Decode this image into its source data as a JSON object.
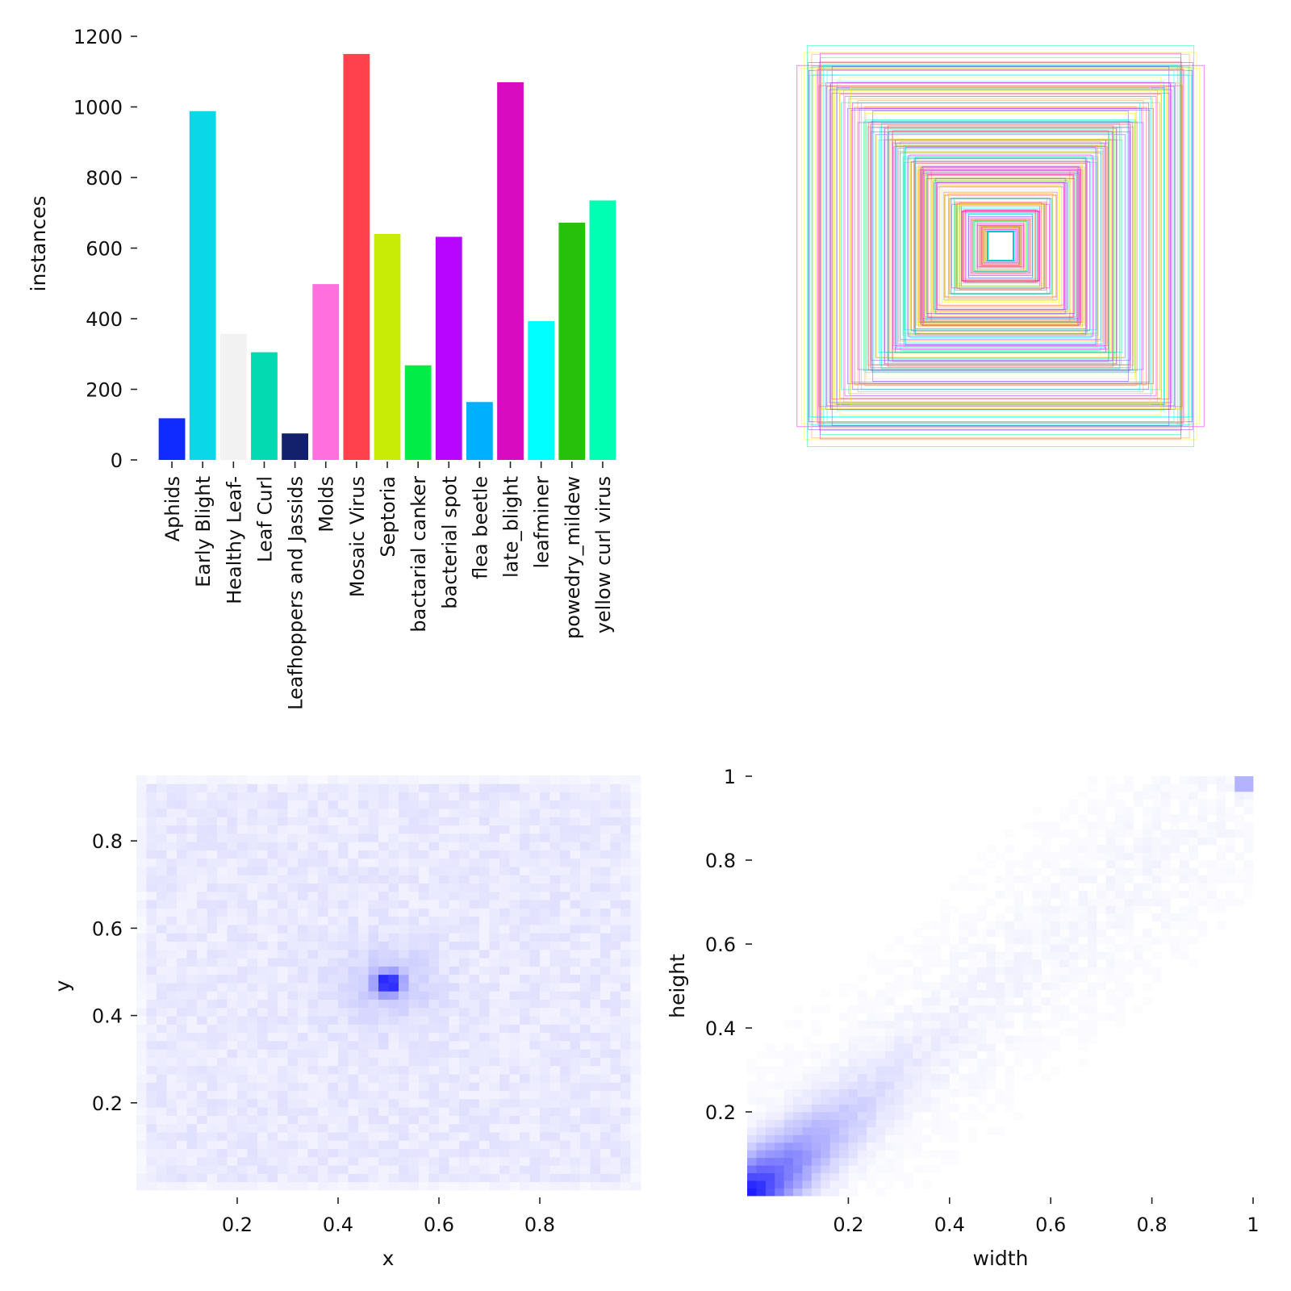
{
  "chart_data": [
    {
      "type": "bar",
      "title": "",
      "xlabel": "",
      "ylabel": "instances",
      "ylim": [
        0,
        1200
      ],
      "yticks": [
        0,
        200,
        400,
        600,
        800,
        1000,
        1200
      ],
      "categories": [
        "Aphids",
        "Early Blight",
        "Healthy Leaf-",
        "Leaf Curl",
        "Leafhoppers and Jassids",
        "Molds",
        "Mosaic Virus",
        "Septoria",
        "bactarial canker",
        "bacterial spot",
        "flea beetle",
        "late_blight",
        "leafminer",
        "powedry_mildew",
        "yellow curl virus"
      ],
      "values": [
        118,
        988,
        357,
        305,
        75,
        498,
        1150,
        640,
        268,
        632,
        164,
        1070,
        393,
        672,
        735
      ],
      "colors": [
        "#0f2bff",
        "#0ad8e8",
        "#f2f2f2",
        "#04dab2",
        "#13206b",
        "#ff6fdd",
        "#ff414e",
        "#c8ec05",
        "#02ec48",
        "#b805ff",
        "#00b0ff",
        "#d90bc0",
        "#00ffff",
        "#27c00b",
        "#01ffb3"
      ]
    },
    {
      "type": "box-overlay",
      "title": "",
      "description_colors": [
        "#ff00ff",
        "#ffff00",
        "#00ffff",
        "#ff4060",
        "#00ff99",
        "#8040ff",
        "#ff9933"
      ]
    },
    {
      "type": "heatmap",
      "title": "",
      "xlabel": "x",
      "ylabel": "y",
      "xlim": [
        0.0,
        1.0
      ],
      "ylim": [
        0.0,
        0.95
      ],
      "xticks": [
        0.2,
        0.4,
        0.6,
        0.8
      ],
      "yticks": [
        0.2,
        0.4,
        0.6,
        0.8
      ],
      "peak": [
        0.5,
        0.5
      ],
      "color": "#0000ff"
    },
    {
      "type": "heatmap",
      "title": "",
      "xlabel": "width",
      "ylabel": "height",
      "xlim": [
        0.0,
        1.0
      ],
      "ylim": [
        0.0,
        1.0
      ],
      "xticks": [
        0.2,
        0.4,
        0.6,
        0.8,
        1.0
      ],
      "yticks": [
        0.2,
        0.4,
        0.6,
        0.8,
        1.0
      ],
      "peak": [
        0.08,
        0.08
      ],
      "color": "#0000ff"
    }
  ]
}
